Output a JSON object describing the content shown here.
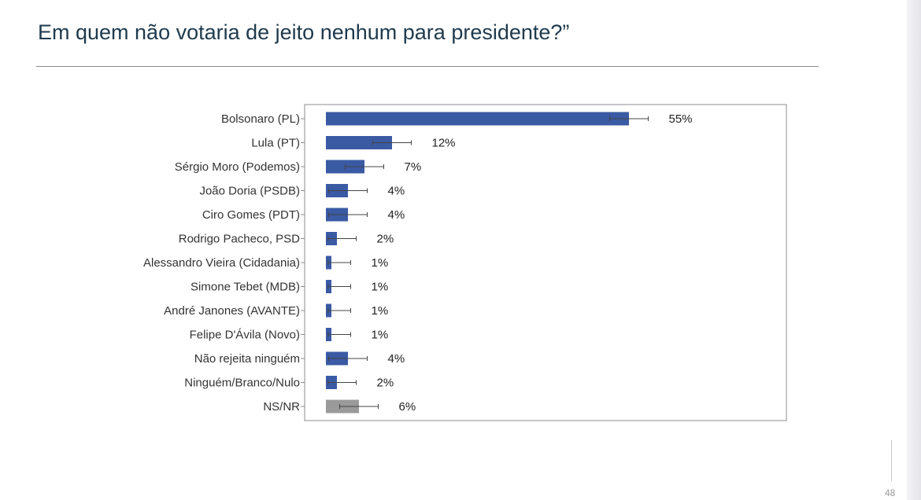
{
  "title": "Em quem não votaria de jeito nenhum para presidente?”",
  "page_number": "48",
  "colors": {
    "bar": "#3a5aa3",
    "bar_neutral": "#9a9a9a",
    "title": "#1f3a4d"
  },
  "chart_data": {
    "type": "bar",
    "orientation": "horizontal",
    "error_bars": true,
    "grid": false,
    "xlim": [
      0,
      80
    ],
    "categories": [
      "Bolsonaro (PL)",
      "Lula (PT)",
      "Sérgio Moro (Podemos)",
      "João Doria (PSDB)",
      "Ciro Gomes (PDT)",
      "Rodrigo Pacheco, PSD",
      "Alessandro Vieira (Cidadania)",
      "Simone Tebet (MDB)",
      "André Janones (AVANTE)",
      "Felipe D'Ávila (Novo)",
      "Não rejeita ninguém",
      "Ninguém/Branco/Nulo",
      "NS/NR"
    ],
    "values": [
      55,
      12,
      7,
      4,
      4,
      2,
      1,
      1,
      1,
      1,
      4,
      2,
      6
    ],
    "labels": [
      "55%",
      "12%",
      "7%",
      "4%",
      "4%",
      "2%",
      "1%",
      "1%",
      "1%",
      "1%",
      "4%",
      "2%",
      "6%"
    ],
    "error": [
      3.5,
      3.5,
      3.5,
      3.5,
      3.5,
      3.5,
      3.5,
      3.5,
      3.5,
      3.5,
      3.5,
      3.5,
      3.5
    ],
    "bar_colors": [
      "#3a5aa3",
      "#3a5aa3",
      "#3a5aa3",
      "#3a5aa3",
      "#3a5aa3",
      "#3a5aa3",
      "#3a5aa3",
      "#3a5aa3",
      "#3a5aa3",
      "#3a5aa3",
      "#3a5aa3",
      "#3a5aa3",
      "#9a9a9a"
    ]
  }
}
